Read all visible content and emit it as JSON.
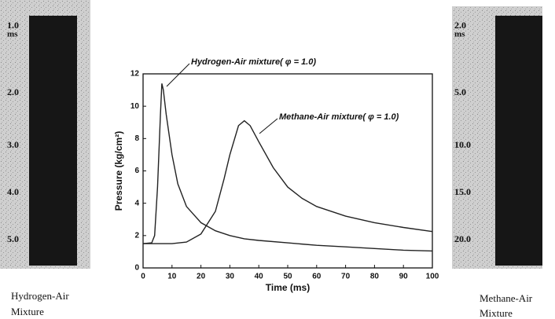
{
  "chart_data": {
    "type": "line",
    "x_label": "Time (ms)",
    "y_label": "Pressure (kg/cm²)",
    "xlim": [
      0,
      100
    ],
    "xticks": [
      0,
      10,
      20,
      30,
      40,
      50,
      60,
      70,
      80,
      90,
      100
    ],
    "ylim": [
      0,
      12
    ],
    "yticks": [
      0,
      2,
      4,
      6,
      8,
      10,
      12
    ],
    "series": [
      {
        "name": "Hydrogen-Air mixture( φ = 1.0)",
        "color": "#222222",
        "x": [
          0,
          3,
          4,
          5,
          6,
          6.5,
          7,
          8,
          10,
          12,
          15,
          20,
          25,
          30,
          35,
          40,
          50,
          60,
          70,
          80,
          90,
          100
        ],
        "values": [
          1.5,
          1.55,
          2,
          5,
          9.5,
          11.4,
          11,
          9.5,
          7,
          5.2,
          3.8,
          2.8,
          2.3,
          2.0,
          1.8,
          1.7,
          1.55,
          1.4,
          1.3,
          1.2,
          1.1,
          1.05
        ]
      },
      {
        "name": "Methane-Air mixture( φ = 1.0)",
        "color": "#222222",
        "x": [
          0,
          10,
          15,
          20,
          25,
          28,
          30,
          33,
          35,
          37,
          40,
          45,
          50,
          55,
          60,
          70,
          80,
          90,
          100
        ],
        "values": [
          1.5,
          1.5,
          1.6,
          2.1,
          3.5,
          5.5,
          7,
          8.8,
          9.1,
          8.8,
          7.8,
          6.2,
          5.0,
          4.3,
          3.8,
          3.2,
          2.8,
          2.5,
          2.25
        ]
      }
    ]
  },
  "left_strip": {
    "labels": [
      "1.0",
      "2.0",
      "3.0",
      "4.0",
      "5.0"
    ],
    "unit": "ms",
    "caption": [
      "Hydrogen-Air",
      "Mixture"
    ]
  },
  "right_strip": {
    "labels": [
      "2.0",
      "5.0",
      "10.0",
      "15.0",
      "20.0"
    ],
    "unit": "ms",
    "caption": [
      "Methane-Air",
      "Mixture"
    ]
  }
}
